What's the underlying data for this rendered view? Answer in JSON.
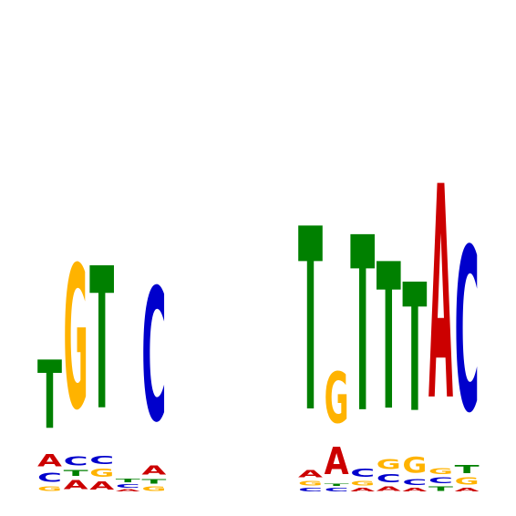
{
  "colors": {
    "A": "#cc0000",
    "C": "#0000cc",
    "G": "#ffb300",
    "T": "#008000"
  },
  "chart_data": {
    "type": "sequence-logo",
    "alphabet": [
      "A",
      "C",
      "G",
      "T"
    ],
    "ylim": [
      0,
      2
    ],
    "axes_visible": false,
    "positions": [
      {
        "index": 1,
        "stack": [
          {
            "letter": "G",
            "bits": 0.04
          },
          {
            "letter": "C",
            "bits": 0.08
          },
          {
            "letter": "A",
            "bits": 0.11
          },
          {
            "letter": "T",
            "bits": 0.6
          }
        ]
      },
      {
        "index": 2,
        "stack": [
          {
            "letter": "A",
            "bits": 0.08
          },
          {
            "letter": "T",
            "bits": 0.05
          },
          {
            "letter": "C",
            "bits": 0.08
          },
          {
            "letter": "G",
            "bits": 1.26
          }
        ]
      },
      {
        "index": 3,
        "stack": [
          {
            "letter": "A",
            "bits": 0.07
          },
          {
            "letter": "G",
            "bits": 0.07
          },
          {
            "letter": "C",
            "bits": 0.07
          },
          {
            "letter": "T",
            "bits": 1.25
          }
        ]
      },
      {
        "index": 4,
        "stack": [
          {
            "letter": "A",
            "bits": 0.02
          },
          {
            "letter": "C",
            "bits": 0.03
          },
          {
            "letter": "T",
            "bits": 0.03
          }
        ]
      },
      {
        "index": 5,
        "stack": [
          {
            "letter": "G",
            "bits": 0.04
          },
          {
            "letter": "T",
            "bits": 0.04
          },
          {
            "letter": "A",
            "bits": 0.08
          },
          {
            "letter": "C",
            "bits": 1.17
          }
        ]
      },
      {
        "index": 6,
        "stack": []
      },
      {
        "index": 7,
        "stack": []
      },
      {
        "index": 8,
        "stack": []
      },
      {
        "index": 9,
        "stack": []
      },
      {
        "index": 10,
        "stack": []
      },
      {
        "index": 11,
        "stack": [
          {
            "letter": "C",
            "bits": 0.03
          },
          {
            "letter": "G",
            "bits": 0.04
          },
          {
            "letter": "A",
            "bits": 0.06
          },
          {
            "letter": "T",
            "bits": 1.61
          }
        ]
      },
      {
        "index": 12,
        "stack": [
          {
            "letter": "C",
            "bits": 0.03
          },
          {
            "letter": "T",
            "bits": 0.02
          },
          {
            "letter": "A",
            "bits": 0.24
          },
          {
            "letter": "G",
            "bits": 0.45
          }
        ]
      },
      {
        "index": 13,
        "stack": [
          {
            "letter": "A",
            "bits": 0.03
          },
          {
            "letter": "G",
            "bits": 0.04
          },
          {
            "letter": "C",
            "bits": 0.07
          },
          {
            "letter": "T",
            "bits": 1.54
          }
        ]
      },
      {
        "index": 14,
        "stack": [
          {
            "letter": "A",
            "bits": 0.04
          },
          {
            "letter": "C",
            "bits": 0.07
          },
          {
            "letter": "G",
            "bits": 0.09
          },
          {
            "letter": "T",
            "bits": 1.29
          }
        ]
      },
      {
        "index": 15,
        "stack": [
          {
            "letter": "A",
            "bits": 0.03
          },
          {
            "letter": "C",
            "bits": 0.05
          },
          {
            "letter": "G",
            "bits": 0.14
          },
          {
            "letter": "T",
            "bits": 1.13
          }
        ]
      },
      {
        "index": 16,
        "stack": [
          {
            "letter": "T",
            "bits": 0.04
          },
          {
            "letter": "C",
            "bits": 0.05
          },
          {
            "letter": "G",
            "bits": 0.05
          },
          {
            "letter": "A",
            "bits": 1.88
          }
        ]
      },
      {
        "index": 17,
        "stack": [
          {
            "letter": "A",
            "bits": 0.03
          },
          {
            "letter": "G",
            "bits": 0.06
          },
          {
            "letter": "T",
            "bits": 0.07
          },
          {
            "letter": "C",
            "bits": 1.44
          }
        ]
      }
    ]
  }
}
